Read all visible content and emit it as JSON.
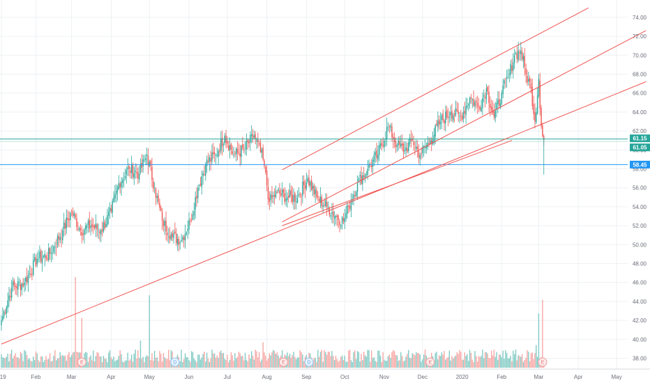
{
  "chart_data": {
    "type": "candlestick",
    "colors": {
      "up": "#26a69a",
      "down": "#ef5350",
      "vol_up": "#82cbc4",
      "vol_down": "#f7a7a5",
      "trend": "#ef5350",
      "level": "#2196f3",
      "teal": "#26a69a",
      "grid": "#eef0f3",
      "axis_text": "#6a6d78"
    },
    "ylim": [
      37,
      75
    ],
    "yticks": [
      "38.00",
      "40.00",
      "42.00",
      "44.00",
      "46.00",
      "48.00",
      "50.00",
      "52.00",
      "54.00",
      "56.00",
      "58.00",
      "60.00",
      "62.00",
      "64.00",
      "66.00",
      "68.00",
      "70.00",
      "72.00",
      "74.00"
    ],
    "xticks": [
      {
        "label": "019",
        "t": 0
      },
      {
        "label": "Feb",
        "t": 27
      },
      {
        "label": "Mar",
        "t": 55
      },
      {
        "label": "Apr",
        "t": 86
      },
      {
        "label": "May",
        "t": 116
      },
      {
        "label": "Jun",
        "t": 147
      },
      {
        "label": "Jul",
        "t": 177
      },
      {
        "label": "Aug",
        "t": 208
      },
      {
        "label": "Sep",
        "t": 239
      },
      {
        "label": "Oct",
        "t": 269
      },
      {
        "label": "Nov",
        "t": 300
      },
      {
        "label": "Dec",
        "t": 330
      },
      {
        "label": "2020",
        "t": 361
      },
      {
        "label": "Feb",
        "t": 392
      },
      {
        "label": "Mar",
        "t": 421
      },
      {
        "label": "Apr",
        "t": 452
      },
      {
        "label": "May",
        "t": 482
      }
    ],
    "price_tags": [
      {
        "label": "61.15",
        "value": 61.15,
        "color": "#26a69a"
      },
      {
        "label": "61.05",
        "value": 61.05,
        "color": "#26a69a"
      },
      {
        "label": "58.45",
        "value": 58.45,
        "color": "#2196f3"
      }
    ],
    "horizontal_levels": [
      {
        "value": 61.15,
        "color": "#26a69a"
      },
      {
        "value": 58.45,
        "color": "#2196f3"
      }
    ],
    "trend_lines": [
      {
        "t1": 0,
        "p1": 39.5,
        "t2": 505,
        "p2": 67.2
      },
      {
        "t1": 220,
        "p1": 57.9,
        "t2": 460,
        "p2": 75.0
      },
      {
        "t1": 220,
        "p1": 52.4,
        "t2": 505,
        "p2": 72.6
      },
      {
        "t1": 220,
        "p1": 52.0,
        "t2": 400,
        "p2": 61.0
      }
    ],
    "events": [
      {
        "label": "E",
        "t": 63,
        "kind": "earnings"
      },
      {
        "label": "D",
        "t": 136,
        "kind": "dividend"
      },
      {
        "label": "E",
        "t": 221,
        "kind": "earnings"
      },
      {
        "label": "D",
        "t": 241,
        "kind": "dividend"
      },
      {
        "label": "E",
        "t": 336,
        "kind": "earnings"
      },
      {
        "label": "E",
        "t": 424,
        "kind": "earnings"
      }
    ],
    "anchors": [
      {
        "t": 0,
        "c": 42.0
      },
      {
        "t": 8,
        "c": 45.5
      },
      {
        "t": 18,
        "c": 46.0
      },
      {
        "t": 28,
        "c": 48.5
      },
      {
        "t": 38,
        "c": 49.0
      },
      {
        "t": 48,
        "c": 51.5
      },
      {
        "t": 55,
        "c": 53.5
      },
      {
        "t": 62,
        "c": 51.5
      },
      {
        "t": 70,
        "c": 52.0
      },
      {
        "t": 78,
        "c": 51.5
      },
      {
        "t": 86,
        "c": 53.5
      },
      {
        "t": 92,
        "c": 56.5
      },
      {
        "t": 100,
        "c": 58.0
      },
      {
        "t": 108,
        "c": 57.5
      },
      {
        "t": 114,
        "c": 59.5
      },
      {
        "t": 120,
        "c": 56.0
      },
      {
        "t": 126,
        "c": 52.5
      },
      {
        "t": 134,
        "c": 50.8
      },
      {
        "t": 141,
        "c": 50.5
      },
      {
        "t": 148,
        "c": 52.5
      },
      {
        "t": 154,
        "c": 56.0
      },
      {
        "t": 160,
        "c": 58.5
      },
      {
        "t": 168,
        "c": 59.5
      },
      {
        "t": 175,
        "c": 61.5
      },
      {
        "t": 182,
        "c": 59.5
      },
      {
        "t": 190,
        "c": 60.0
      },
      {
        "t": 198,
        "c": 61.5
      },
      {
        "t": 205,
        "c": 59.0
      },
      {
        "t": 210,
        "c": 54.5
      },
      {
        "t": 216,
        "c": 55.5
      },
      {
        "t": 224,
        "c": 55.0
      },
      {
        "t": 232,
        "c": 55.0
      },
      {
        "t": 240,
        "c": 57.0
      },
      {
        "t": 247,
        "c": 55.0
      },
      {
        "t": 255,
        "c": 54.0
      },
      {
        "t": 262,
        "c": 53.0
      },
      {
        "t": 268,
        "c": 52.5
      },
      {
        "t": 272,
        "c": 54.0
      },
      {
        "t": 279,
        "c": 56.5
      },
      {
        "t": 287,
        "c": 58.0
      },
      {
        "t": 295,
        "c": 59.5
      },
      {
        "t": 303,
        "c": 62.5
      },
      {
        "t": 310,
        "c": 60.5
      },
      {
        "t": 316,
        "c": 60.0
      },
      {
        "t": 322,
        "c": 61.0
      },
      {
        "t": 328,
        "c": 59.5
      },
      {
        "t": 336,
        "c": 61.0
      },
      {
        "t": 344,
        "c": 63.0
      },
      {
        "t": 352,
        "c": 64.0
      },
      {
        "t": 360,
        "c": 63.5
      },
      {
        "t": 367,
        "c": 65.5
      },
      {
        "t": 374,
        "c": 64.5
      },
      {
        "t": 380,
        "c": 66.5
      },
      {
        "t": 386,
        "c": 63.5
      },
      {
        "t": 392,
        "c": 66.0
      },
      {
        "t": 398,
        "c": 68.0
      },
      {
        "t": 402,
        "c": 70.0
      },
      {
        "t": 407,
        "c": 70.5
      },
      {
        "t": 411,
        "c": 68.0
      },
      {
        "t": 415,
        "c": 66.5
      },
      {
        "t": 418,
        "c": 63.0
      },
      {
        "t": 421,
        "c": 67.5
      },
      {
        "t": 423,
        "c": 62.5
      },
      {
        "t": 425,
        "c": 61.05
      }
    ],
    "volume_spikes": [
      {
        "t": 58,
        "v": 1.0
      },
      {
        "t": 63,
        "v": 0.55
      },
      {
        "t": 116,
        "v": 0.8
      },
      {
        "t": 109,
        "v": 0.3
      },
      {
        "t": 205,
        "v": 0.28
      },
      {
        "t": 419,
        "v": 0.25
      },
      {
        "t": 421,
        "v": 0.6
      },
      {
        "t": 424,
        "v": 0.75
      }
    ]
  }
}
